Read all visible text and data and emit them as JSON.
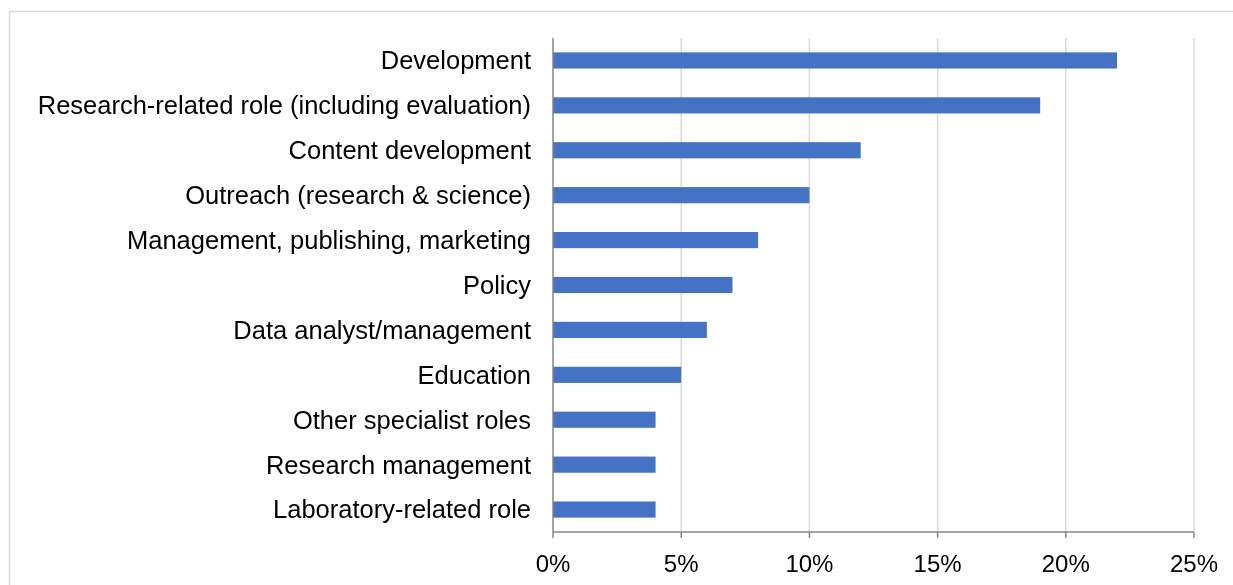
{
  "chart_data": {
    "type": "bar",
    "orientation": "horizontal",
    "categories": [
      "Development",
      "Research-related role (including evaluation)",
      "Content development",
      "Outreach (research & science)",
      "Management, publishing, marketing",
      "Policy",
      "Data analyst/management",
      "Education",
      "Other specialist roles",
      "Research management",
      "Laboratory-related role"
    ],
    "values": [
      22,
      19,
      12,
      10,
      8,
      7,
      6,
      5,
      4,
      4,
      4
    ],
    "color": "#4472c4",
    "xlim": [
      0,
      25
    ],
    "xticks": [
      {
        "value": 0,
        "label": "0%"
      },
      {
        "value": 5,
        "label": "5%"
      },
      {
        "value": 10,
        "label": "10%"
      },
      {
        "value": 15,
        "label": "15%"
      },
      {
        "value": 20,
        "label": "20%"
      },
      {
        "value": 25,
        "label": "25%"
      }
    ],
    "grid": "x"
  }
}
